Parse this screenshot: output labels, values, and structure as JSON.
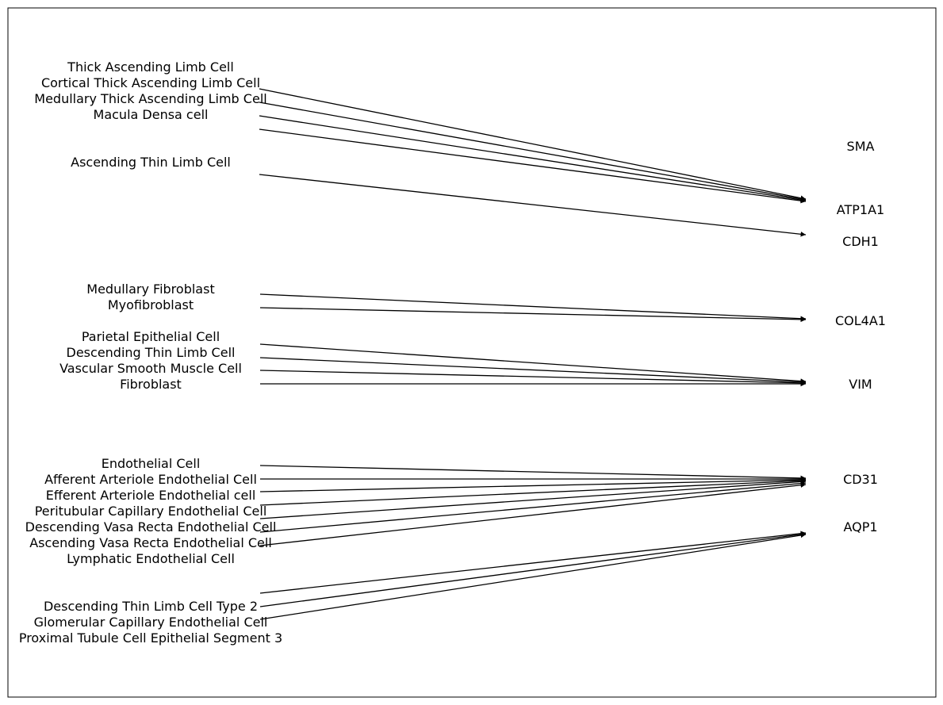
{
  "cell_types": [
    "Thick Ascending Limb Cell",
    "Cortical Thick Ascending Limb Cell",
    "Medullary Thick Ascending Limb Cell",
    "Macula Densa cell",
    "Ascending Thin Limb Cell",
    "Medullary Fibroblast",
    "Myofibroblast",
    "Parietal Epithelial Cell",
    "Descending Thin Limb Cell",
    "Vascular Smooth Muscle Cell",
    "Fibroblast",
    "Endothelial Cell",
    "Afferent Arteriole Endothelial Cell",
    "Efferent Arteriole Endothelial cell",
    "Peritubular Capillary Endothelial Cell",
    "Descending Vasa Recta Endothelial Cell",
    "Ascending Vasa Recta Endothelial Cell",
    "Lymphatic Endothelial Cell",
    "Descending Thin Limb Cell Type 2",
    "Glomerular Capillary Endothelial Cell",
    "Proximal Tubule Cell Epithelial Segment 3"
  ],
  "markers": [
    "SMA",
    "ATP1A1",
    "CDH1",
    "COL4A1",
    "VIM",
    "CD31",
    "AQP1"
  ]
}
